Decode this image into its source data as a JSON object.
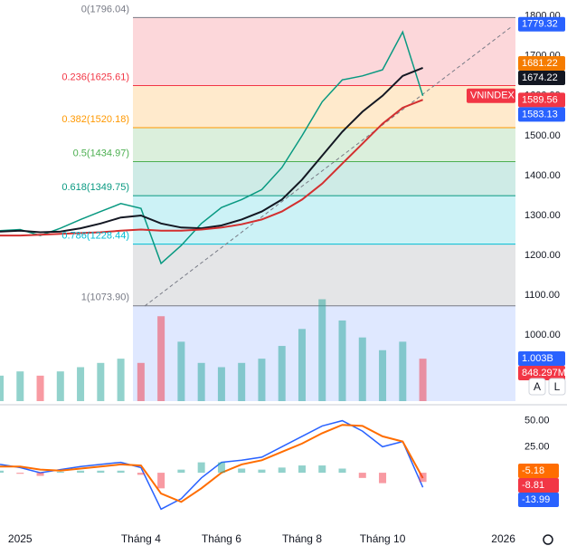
{
  "chart_data": [
    {
      "type": "line",
      "x": [
        -0.5,
        0,
        0.5,
        1,
        1.5,
        2,
        2.5,
        3,
        3.5,
        4,
        4.5,
        5,
        5.5,
        6,
        6.5,
        7,
        7.5,
        8,
        8.5,
        9,
        9.5,
        10
      ],
      "xlim": [
        -0.5,
        12.3
      ],
      "ylim": [
        835,
        1840
      ],
      "yticks": [
        {
          "value": 1800,
          "label": "1800.00"
        },
        {
          "value": 1700,
          "label": "1700.00"
        },
        {
          "value": 1600,
          "label": "1600.00"
        },
        {
          "value": 1500,
          "label": "1500.00"
        },
        {
          "value": 1400,
          "label": "1400.00"
        },
        {
          "value": 1300,
          "label": "1300.00"
        },
        {
          "value": 1200,
          "label": "1200.00"
        },
        {
          "value": 1100,
          "label": "1100.00"
        },
        {
          "value": 1000,
          "label": "1000.00"
        }
      ],
      "y2lim": [
        0,
        9.45
      ],
      "series": [
        {
          "name": "VNINDEX",
          "color": "#089981",
          "values": [
            1262,
            1265,
            1250,
            1268,
            1290,
            1310,
            1330,
            1318,
            1180,
            1225,
            1280,
            1320,
            1340,
            1365,
            1420,
            1500,
            1585,
            1640,
            1650,
            1665,
            1760,
            1600
          ]
        },
        {
          "color": "#131722",
          "values": [
            1260,
            1262,
            1258,
            1260,
            1268,
            1280,
            1295,
            1300,
            1280,
            1270,
            1268,
            1275,
            1290,
            1310,
            1340,
            1390,
            1450,
            1510,
            1560,
            1600,
            1650,
            1670
          ]
        },
        {
          "color": "#d32f2f",
          "values": [
            1250,
            1250,
            1252,
            1254,
            1256,
            1258,
            1262,
            1265,
            1262,
            1262,
            1265,
            1270,
            1278,
            1290,
            1310,
            1340,
            1380,
            1430,
            1480,
            1530,
            1570,
            1590
          ]
        },
        {
          "style": "bars",
          "axis": "y2",
          "colors": [
            "#26a69a",
            "#f23645"
          ],
          "values": [
            0.6,
            0.7,
            0.6,
            0.7,
            0.8,
            0.9,
            1.0,
            0.9,
            2.0,
            1.4,
            0.9,
            0.8,
            0.9,
            1.0,
            1.3,
            1.7,
            2.4,
            1.9,
            1.5,
            1.2,
            1.4,
            1.0
          ]
        }
      ],
      "fib_levels": [
        {
          "value": 1796.04,
          "label": "0(1796.04)",
          "color": "#787b86"
        },
        {
          "value": 1625.61,
          "label": "0.236(1625.61)",
          "color": "#f23645"
        },
        {
          "value": 1520.18,
          "label": "0.382(1520.18)",
          "color": "#ff9800"
        },
        {
          "value": 1434.97,
          "label": "0.5(1434.97)",
          "color": "#4caf50"
        },
        {
          "value": 1349.75,
          "label": "0.618(1349.75)",
          "color": "#089981"
        },
        {
          "value": 1228.44,
          "label": "0.786(1228.44)",
          "color": "#00bcd4"
        },
        {
          "value": 1073.9,
          "label": "1(1073.90)",
          "color": "#787b86"
        }
      ],
      "price_tags": [
        {
          "value": 1779.32,
          "color": "#2962ff"
        },
        {
          "value": 1681.22,
          "color": "#f57c00"
        },
        {
          "value": 1674.22,
          "color": "#131722"
        },
        {
          "value": 1589.56,
          "color": "#f23645"
        },
        {
          "value": 1583.13,
          "color": "#2962ff"
        }
      ],
      "volume_tags": [
        {
          "value": 1.003,
          "label": "1.003B",
          "color": "#2962ff"
        },
        {
          "value": 0.848297,
          "label": "848.297M",
          "color": "#f23645"
        }
      ]
    },
    {
      "type": "line",
      "x": [
        -0.5,
        0,
        0.5,
        1,
        1.5,
        2,
        2.5,
        3,
        3.5,
        4,
        4.5,
        5,
        5.5,
        6,
        6.5,
        7,
        7.5,
        8,
        8.5,
        9,
        9.5,
        10
      ],
      "xlim": [
        -0.5,
        12.3
      ],
      "ylim": [
        -53,
        61
      ],
      "yticks": [
        {
          "value": 50,
          "label": "50.00"
        },
        {
          "value": 25,
          "label": "25.00"
        }
      ],
      "xticks": [
        {
          "value": 0,
          "label": "2025"
        },
        {
          "value": 3,
          "label": "Tháng 4"
        },
        {
          "value": 5,
          "label": "Tháng 6"
        },
        {
          "value": 7,
          "label": "Tháng 8"
        },
        {
          "value": 9,
          "label": "Tháng 10"
        },
        {
          "value": 12,
          "label": "2026"
        }
      ],
      "series": [
        {
          "color": "#2962ff",
          "values": [
            8,
            5,
            0,
            3,
            6,
            8,
            10,
            5,
            -35,
            -25,
            -5,
            10,
            12,
            15,
            25,
            35,
            45,
            50,
            40,
            25,
            30,
            -13.99
          ]
        },
        {
          "color": "#ff6d00",
          "values": [
            6,
            6,
            3,
            2,
            4,
            6,
            8,
            7,
            -20,
            -28,
            -15,
            0,
            8,
            12,
            20,
            28,
            38,
            46,
            45,
            35,
            30,
            -5.18
          ]
        },
        {
          "style": "bars",
          "colors": [
            "#26a69a",
            "#f23645"
          ],
          "values": [
            2,
            -1,
            -3,
            1,
            2,
            2,
            2,
            -2,
            -15,
            3,
            10,
            10,
            4,
            3,
            5,
            7,
            7,
            4,
            -5,
            -10,
            0,
            -8.81
          ]
        }
      ],
      "value_tags": [
        {
          "value": -5.18,
          "color": "#ff6d00"
        },
        {
          "value": -8.81,
          "color": "#f23645"
        },
        {
          "value": -13.99,
          "color": "#2962ff"
        }
      ]
    }
  ],
  "controls": [
    "A",
    "L"
  ]
}
